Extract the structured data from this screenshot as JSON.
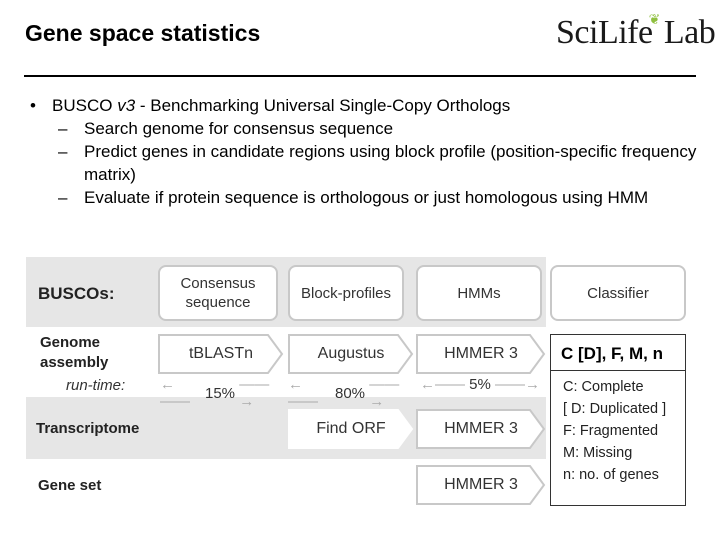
{
  "header": {
    "title": "Gene space statistics",
    "logo": {
      "part1": "Sci",
      "part2": "Life",
      "part3": "Lab"
    }
  },
  "bullets": {
    "main_pre": "BUSCO ",
    "main_version": "v3",
    "main_post": " - Benchmarking Universal Single-Copy Orthologs",
    "sub": [
      "Search genome for consensus sequence",
      "Predict genes in candidate regions using block profile (position-specific frequency matrix)",
      "Evaluate if protein sequence is orthologous or just homologous using HMM"
    ]
  },
  "diagram": {
    "rows": {
      "buscos": "BUSCOs:",
      "genome": "Genome\nassembly",
      "runtime": "run-time:",
      "transcriptome": "Transcriptome",
      "geneset": "Gene set"
    },
    "columns": [
      "Consensus sequence",
      "Block-profiles",
      "HMMs",
      "Classifier"
    ],
    "genome_steps": [
      "tBLASTn",
      "Augustus",
      "HMMER 3"
    ],
    "runtime_pct": [
      "15%",
      "80%",
      "5%"
    ],
    "transcriptome_steps": [
      "Find ORF",
      "HMMER 3"
    ],
    "geneset_steps": [
      "HMMER 3"
    ],
    "result": {
      "head": "C [D], F, M, n",
      "lines": [
        "C: Complete",
        "[ D: Duplicated ]",
        "F: Fragmented",
        "M: Missing",
        "n: no. of genes"
      ]
    }
  }
}
